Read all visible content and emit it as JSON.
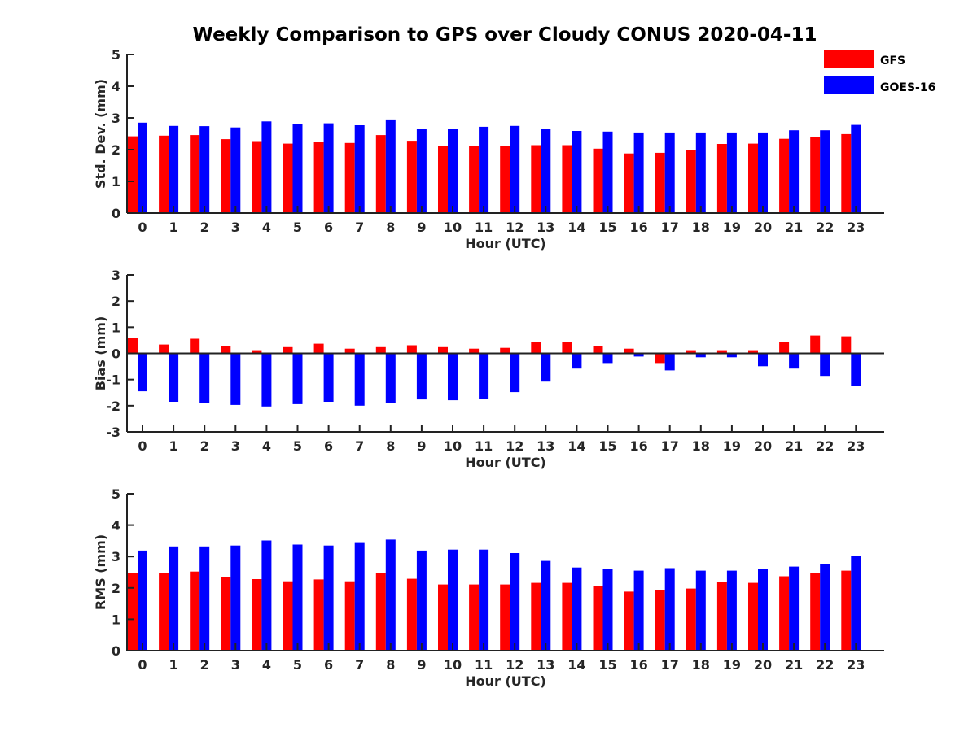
{
  "title": "Weekly Comparison to GPS over Cloudy CONUS 2020-04-11",
  "legend": {
    "placement": "top-right",
    "items": [
      {
        "label": "GFS",
        "color": "#ff0000"
      },
      {
        "label": "GOES-16",
        "color": "#0000ff"
      }
    ]
  },
  "chart_data": [
    {
      "type": "bar",
      "ylabel": "Std. Dev. (mm)",
      "xlabel": "Hour (UTC)",
      "ylim": [
        0,
        5
      ],
      "yticks": [
        0,
        1,
        2,
        3,
        4,
        5
      ],
      "categories": [
        "0",
        "1",
        "2",
        "3",
        "4",
        "5",
        "6",
        "7",
        "8",
        "9",
        "10",
        "11",
        "12",
        "13",
        "14",
        "15",
        "16",
        "17",
        "18",
        "19",
        "20",
        "21",
        "22",
        "23"
      ],
      "series": [
        {
          "name": "GFS",
          "color": "#ff0000",
          "values": [
            2.42,
            2.44,
            2.46,
            2.33,
            2.27,
            2.19,
            2.23,
            2.21,
            2.46,
            2.28,
            2.11,
            2.11,
            2.12,
            2.14,
            2.14,
            2.03,
            1.88,
            1.9,
            1.99,
            2.18,
            2.19,
            2.34,
            2.39,
            2.49
          ]
        },
        {
          "name": "GOES-16",
          "color": "#0000ff",
          "values": [
            2.85,
            2.75,
            2.74,
            2.7,
            2.89,
            2.8,
            2.83,
            2.77,
            2.95,
            2.66,
            2.66,
            2.72,
            2.75,
            2.66,
            2.59,
            2.57,
            2.54,
            2.54,
            2.54,
            2.54,
            2.54,
            2.61,
            2.61,
            2.78
          ]
        }
      ]
    },
    {
      "type": "bar",
      "ylabel": "Bias (mm)",
      "xlabel": "Hour (UTC)",
      "ylim": [
        -3,
        3
      ],
      "yticks": [
        -3,
        -2,
        -1,
        0,
        1,
        2,
        3
      ],
      "categories": [
        "0",
        "1",
        "2",
        "3",
        "4",
        "5",
        "6",
        "7",
        "8",
        "9",
        "10",
        "11",
        "12",
        "13",
        "14",
        "15",
        "16",
        "17",
        "18",
        "19",
        "20",
        "21",
        "22",
        "23"
      ],
      "series": [
        {
          "name": "GFS",
          "color": "#ff0000",
          "values": [
            0.59,
            0.34,
            0.56,
            0.27,
            0.12,
            0.24,
            0.37,
            0.18,
            0.24,
            0.31,
            0.24,
            0.18,
            0.21,
            0.43,
            0.43,
            0.27,
            0.18,
            -0.37,
            0.12,
            0.12,
            0.12,
            0.43,
            0.68,
            0.65
          ]
        },
        {
          "name": "GOES-16",
          "color": "#0000ff",
          "values": [
            -1.45,
            -1.85,
            -1.88,
            -1.97,
            -2.03,
            -1.94,
            -1.85,
            -2.0,
            -1.91,
            -1.76,
            -1.79,
            -1.73,
            -1.48,
            -1.08,
            -0.58,
            -0.37,
            -0.12,
            -0.65,
            -0.15,
            -0.15,
            -0.49,
            -0.58,
            -0.86,
            -1.23
          ]
        }
      ]
    },
    {
      "type": "bar",
      "ylabel": "RMS (mm)",
      "xlabel": "Hour (UTC)",
      "ylim": [
        0,
        5
      ],
      "yticks": [
        0,
        1,
        2,
        3,
        4,
        5
      ],
      "categories": [
        "0",
        "1",
        "2",
        "3",
        "4",
        "5",
        "6",
        "7",
        "8",
        "9",
        "10",
        "11",
        "12",
        "13",
        "14",
        "15",
        "16",
        "17",
        "18",
        "19",
        "20",
        "21",
        "22",
        "23"
      ],
      "series": [
        {
          "name": "GFS",
          "color": "#ff0000",
          "values": [
            2.48,
            2.48,
            2.52,
            2.34,
            2.28,
            2.21,
            2.27,
            2.21,
            2.47,
            2.29,
            2.11,
            2.11,
            2.11,
            2.16,
            2.16,
            2.06,
            1.88,
            1.93,
            1.98,
            2.19,
            2.16,
            2.37,
            2.47,
            2.55
          ]
        },
        {
          "name": "GOES-16",
          "color": "#0000ff",
          "values": [
            3.19,
            3.32,
            3.32,
            3.35,
            3.51,
            3.38,
            3.35,
            3.43,
            3.54,
            3.19,
            3.22,
            3.22,
            3.11,
            2.86,
            2.65,
            2.6,
            2.55,
            2.63,
            2.55,
            2.55,
            2.6,
            2.68,
            2.76,
            3.01
          ]
        }
      ]
    }
  ]
}
